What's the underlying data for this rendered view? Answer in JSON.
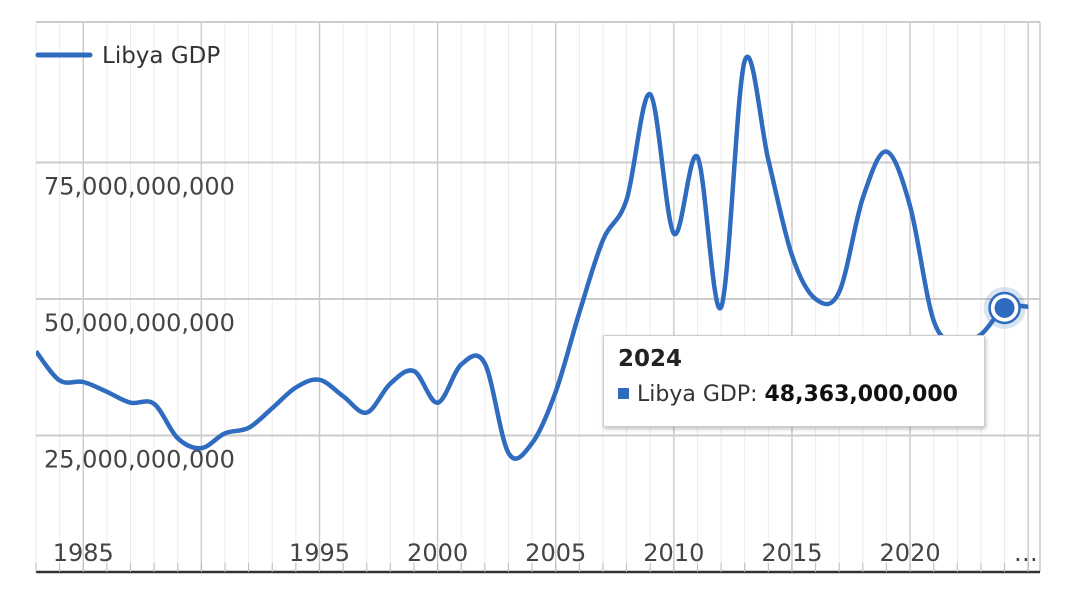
{
  "colors": {
    "series": "#2f6bbf",
    "grid_major": "#cccccc",
    "grid_minor": "#ebebeb",
    "axis": "#333333",
    "tooltip_swatch": "#2f6bbf"
  },
  "chart_data": {
    "type": "line",
    "title": "",
    "xlabel": "",
    "ylabel": "",
    "xlim": [
      1983,
      2025.5
    ],
    "ylim": [
      0,
      100000000000
    ],
    "grid": true,
    "legend": "top-left",
    "x_tick_labels": [
      {
        "value": 1985,
        "label": "1985"
      },
      {
        "value": 1995,
        "label": "1995"
      },
      {
        "value": 2000,
        "label": "2000"
      },
      {
        "value": 2005,
        "label": "2005"
      },
      {
        "value": 2010,
        "label": "2010"
      },
      {
        "value": 2015,
        "label": "2015"
      },
      {
        "value": 2020,
        "label": "2020"
      },
      {
        "value": 2024.9,
        "label": "…"
      }
    ],
    "x_major_grid": [
      1985,
      1990,
      1995,
      2000,
      2005,
      2010,
      2015,
      2020,
      2025
    ],
    "y_ticks": [
      {
        "value": 25000000000,
        "label": "25,000,000,000"
      },
      {
        "value": 50000000000,
        "label": "50,000,000,000"
      },
      {
        "value": 75000000000,
        "label": "75,000,000,000"
      }
    ],
    "series": [
      {
        "name": "Libya GDP",
        "x": [
          1983,
          1984,
          1985,
          1986,
          1987,
          1988,
          1989,
          1990,
          1991,
          1992,
          1993,
          1994,
          1995,
          1996,
          1997,
          1998,
          1999,
          2000,
          2001,
          2002,
          2003,
          2004,
          2005,
          2006,
          2007,
          2008,
          2009,
          2010,
          2011,
          2012,
          2013,
          2014,
          2015,
          2016,
          2017,
          2018,
          2019,
          2020,
          2021,
          2022,
          2023,
          2024,
          2025
        ],
        "y": [
          40400000000,
          35100000000,
          34800000000,
          33000000000,
          31000000000,
          30800000000,
          24500000000,
          22700000000,
          25400000000,
          26400000000,
          30000000000,
          33800000000,
          35200000000,
          32200000000,
          29200000000,
          34500000000,
          36800000000,
          31000000000,
          38000000000,
          38200000000,
          21800000000,
          23600000000,
          33000000000,
          47500000000,
          60800000000,
          68200000000,
          87500000000,
          62000000000,
          76000000000,
          48500000000,
          93600000000,
          75500000000,
          58000000000,
          50000000000,
          51300000000,
          68500000000,
          77000000000,
          67000000000,
          46000000000,
          42000000000,
          43500000000,
          48363000000,
          48600000000
        ]
      }
    ]
  },
  "tooltip": {
    "title": "2024",
    "series_label": "Libya GDP:",
    "value_label": "48,363,000,000"
  }
}
